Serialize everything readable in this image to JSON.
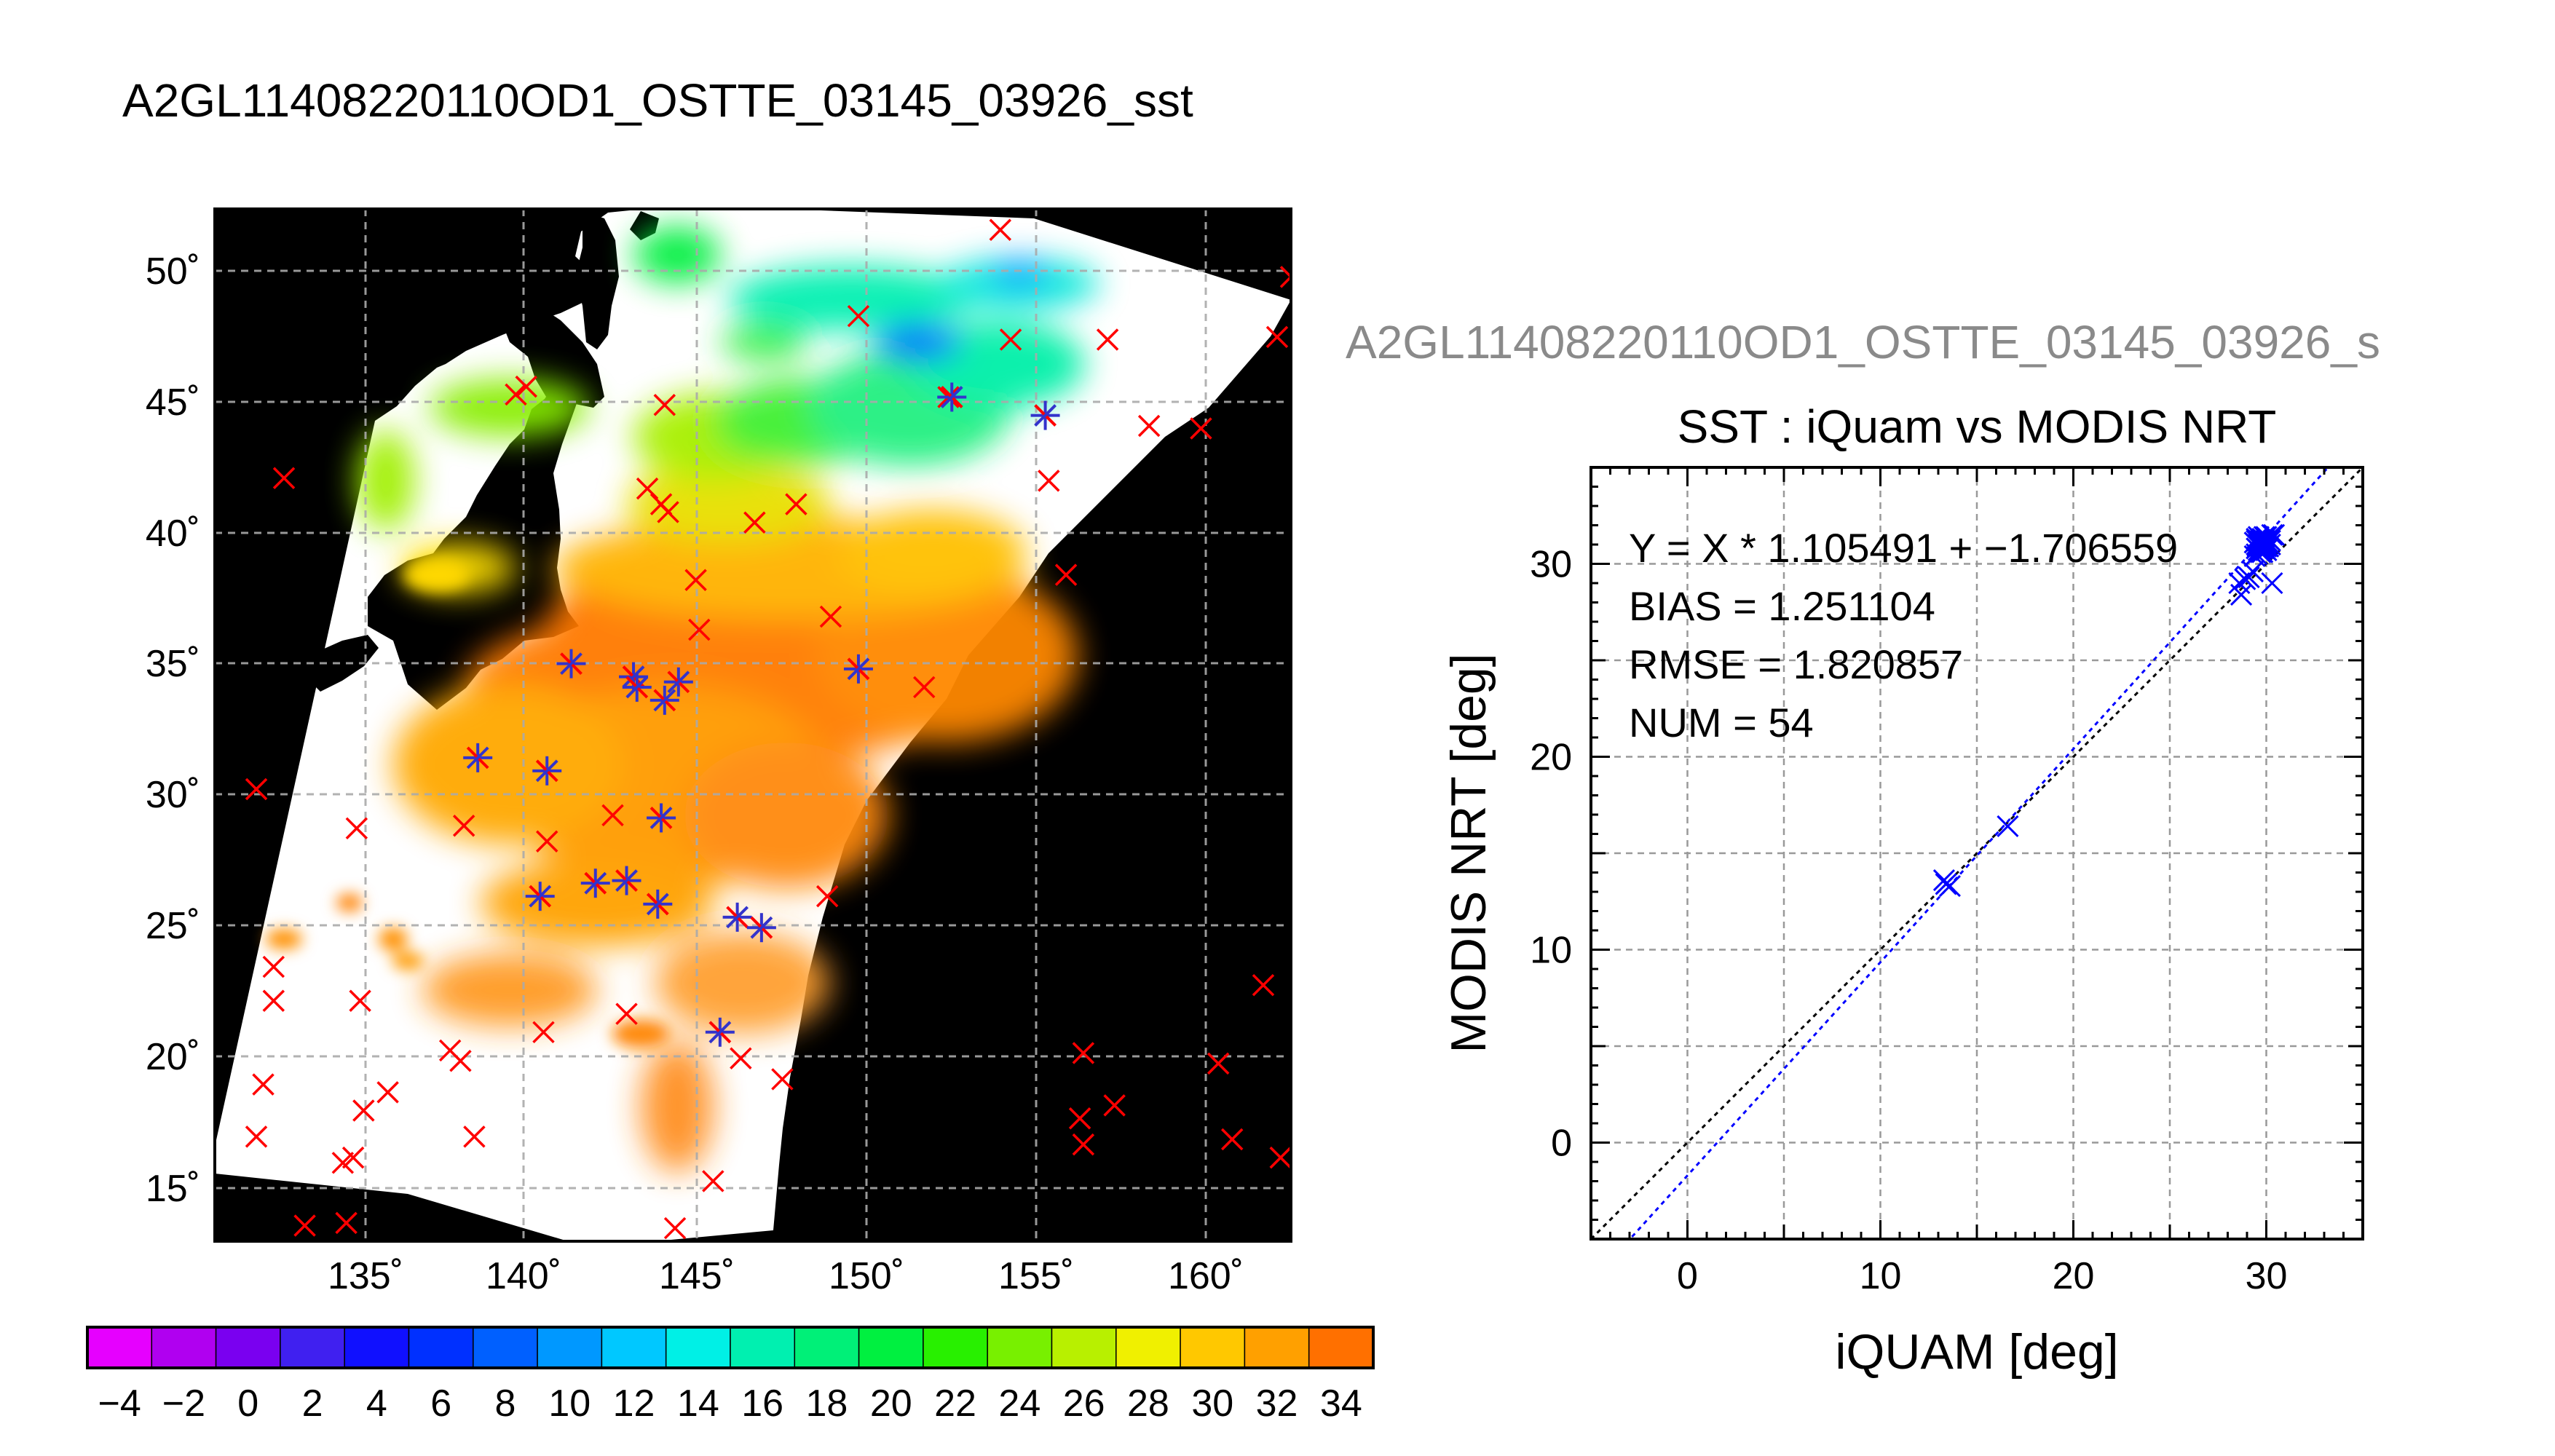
{
  "figure_title": "A2GL11408220110OD1_OSTTE_03145_03926_sst",
  "map": {
    "lon_ticks": [
      "135˚",
      "140˚",
      "145˚",
      "150˚",
      "155˚",
      "160˚"
    ],
    "lat_ticks": [
      "50˚",
      "45˚",
      "40˚",
      "35˚",
      "30˚",
      "25˚",
      "20˚",
      "15˚"
    ],
    "lon_range": [
      131.2,
      162.3
    ],
    "lat_range": [
      13.0,
      52.5
    ],
    "colors": {
      "land": "#000000",
      "no_data": "#ffffff",
      "marker_red": "#ff0000",
      "marker_blue": "#3333cc"
    },
    "matchups": [
      [
        133.2,
        42.2
      ],
      [
        135.3,
        28.8
      ],
      [
        136.2,
        18.7
      ],
      [
        138.0,
        20.3
      ],
      [
        138.3,
        19.9
      ],
      [
        138.7,
        17.0
      ],
      [
        135.4,
        22.2
      ],
      [
        134.9,
        16.0
      ],
      [
        135.2,
        16.2
      ],
      [
        135.5,
        18.0
      ],
      [
        135.0,
        13.7
      ],
      [
        133.8,
        13.6
      ],
      [
        132.4,
        30.3
      ],
      [
        132.9,
        23.5
      ],
      [
        132.9,
        22.2
      ],
      [
        132.6,
        19.0
      ],
      [
        132.4,
        17.0
      ],
      [
        139.9,
        45.4
      ],
      [
        140.2,
        45.7
      ],
      [
        144.2,
        45.0
      ],
      [
        143.7,
        41.8
      ],
      [
        144.1,
        41.2
      ],
      [
        144.3,
        40.9
      ],
      [
        145.1,
        38.3
      ],
      [
        145.2,
        36.4
      ],
      [
        146.8,
        40.5
      ],
      [
        148.0,
        41.2
      ],
      [
        149.8,
        48.4
      ],
      [
        152.4,
        45.3
      ],
      [
        153.9,
        51.7
      ],
      [
        154.2,
        47.5
      ],
      [
        155.3,
        42.1
      ],
      [
        155.8,
        38.5
      ],
      [
        157.0,
        47.5
      ],
      [
        158.2,
        44.2
      ],
      [
        159.7,
        44.1
      ],
      [
        161.9,
        47.6
      ],
      [
        162.3,
        49.9
      ],
      [
        151.7,
        34.2
      ],
      [
        149.0,
        36.9
      ],
      [
        148.9,
        26.2
      ],
      [
        147.6,
        19.2
      ],
      [
        146.4,
        20.0
      ],
      [
        145.6,
        15.3
      ],
      [
        144.5,
        13.5
      ],
      [
        143.1,
        21.7
      ],
      [
        140.7,
        21.0
      ],
      [
        140.8,
        28.3
      ],
      [
        142.7,
        29.3
      ],
      [
        138.4,
        28.9
      ],
      [
        156.3,
        20.2
      ],
      [
        156.2,
        17.7
      ],
      [
        156.3,
        16.7
      ],
      [
        157.2,
        18.2
      ],
      [
        160.2,
        19.8
      ],
      [
        160.6,
        16.9
      ],
      [
        161.5,
        22.8
      ],
      [
        162.0,
        16.2
      ]
    ],
    "colocated": [
      [
        141.5,
        35.1
      ],
      [
        143.3,
        34.6
      ],
      [
        143.4,
        34.2
      ],
      [
        144.2,
        33.7
      ],
      [
        144.6,
        34.4
      ],
      [
        149.8,
        34.9
      ],
      [
        138.8,
        31.5
      ],
      [
        140.8,
        31.0
      ],
      [
        144.1,
        29.2
      ],
      [
        140.6,
        26.2
      ],
      [
        142.2,
        26.7
      ],
      [
        143.1,
        26.8
      ],
      [
        144.0,
        25.9
      ],
      [
        146.3,
        25.4
      ],
      [
        147.0,
        25.0
      ],
      [
        145.8,
        21.0
      ],
      [
        152.5,
        45.3
      ],
      [
        155.2,
        44.6
      ]
    ],
    "colorbar": {
      "labels": [
        "−4",
        "−2",
        "0",
        "2",
        "4",
        "6",
        "8",
        "10",
        "12",
        "14",
        "16",
        "18",
        "20",
        "22",
        "24",
        "26",
        "28",
        "30",
        "32",
        "34"
      ],
      "min": -5,
      "max": 35,
      "bin_width": 2,
      "colors": [
        "#e600ff",
        "#b000f0",
        "#7a00f0",
        "#4020f0",
        "#1010ff",
        "#0030ff",
        "#0060ff",
        "#0098ff",
        "#00c8ff",
        "#00f0e6",
        "#00f0b0",
        "#00f078",
        "#00f040",
        "#28f000",
        "#78f000",
        "#b8f000",
        "#f0f000",
        "#ffc800",
        "#ffa000",
        "#ff7000",
        "#ff4000"
      ]
    }
  },
  "scatter_subtitle": "A2GL11408220110OD1_OSTTE_03145_03926_s",
  "chart_data": {
    "type": "scatter",
    "title": "SST : iQuam vs MODIS NRT",
    "xlabel": "iQUAM [deg]",
    "ylabel": "MODIS NRT [deg]",
    "xlim": [
      -5,
      35
    ],
    "ylim": [
      -5,
      35
    ],
    "xticks": [
      "0",
      "10",
      "20",
      "30"
    ],
    "yticks": [
      "0",
      "10",
      "20",
      "30"
    ],
    "grid": true,
    "stats": [
      "Y = X * 1.105491 + −1.706559",
      "BIAS = 1.251104",
      "RMSE = 1.820857",
      "NUM = 54"
    ],
    "fit": {
      "slope": 1.105491,
      "intercept": -1.706559,
      "color": "#0000ff"
    },
    "identity": {
      "slope": 1,
      "intercept": 0,
      "color": "#000000"
    },
    "marker_color": "#0000ff",
    "points": [
      [
        13.3,
        13.6
      ],
      [
        13.6,
        13.3
      ],
      [
        13.4,
        13.4
      ],
      [
        16.6,
        16.4
      ],
      [
        28.6,
        29.0
      ],
      [
        28.7,
        28.4
      ],
      [
        28.9,
        29.2
      ],
      [
        29.1,
        29.3
      ],
      [
        29.3,
        29.6
      ],
      [
        29.4,
        30.4
      ],
      [
        29.5,
        30.8
      ],
      [
        29.5,
        31.0
      ],
      [
        29.6,
        31.2
      ],
      [
        29.6,
        31.4
      ],
      [
        29.7,
        30.6
      ],
      [
        29.7,
        31.0
      ],
      [
        29.8,
        31.1
      ],
      [
        29.8,
        31.3
      ],
      [
        29.9,
        30.9
      ],
      [
        29.9,
        31.2
      ],
      [
        30.0,
        31.0
      ],
      [
        30.0,
        31.4
      ],
      [
        30.1,
        31.1
      ],
      [
        30.2,
        31.2
      ],
      [
        30.3,
        31.5
      ],
      [
        29.5,
        30.5
      ],
      [
        29.6,
        30.7
      ],
      [
        29.7,
        30.9
      ],
      [
        29.8,
        30.8
      ],
      [
        29.9,
        31.0
      ],
      [
        30.0,
        30.7
      ],
      [
        30.1,
        31.3
      ],
      [
        29.4,
        31.1
      ],
      [
        29.5,
        31.3
      ],
      [
        29.6,
        30.9
      ],
      [
        29.7,
        31.2
      ],
      [
        29.8,
        30.6
      ],
      [
        29.9,
        31.4
      ],
      [
        30.0,
        31.2
      ],
      [
        30.1,
        30.9
      ],
      [
        30.2,
        31.0
      ],
      [
        29.6,
        31.1
      ],
      [
        29.7,
        30.8
      ],
      [
        29.8,
        31.0
      ],
      [
        29.9,
        30.8
      ],
      [
        30.0,
        31.1
      ],
      [
        30.3,
        29.0
      ],
      [
        30.4,
        31.5
      ],
      [
        29.5,
        31.2
      ],
      [
        29.6,
        31.0
      ],
      [
        29.7,
        31.1
      ],
      [
        29.8,
        31.2
      ],
      [
        29.9,
        31.1
      ],
      [
        30.0,
        30.9
      ]
    ]
  }
}
